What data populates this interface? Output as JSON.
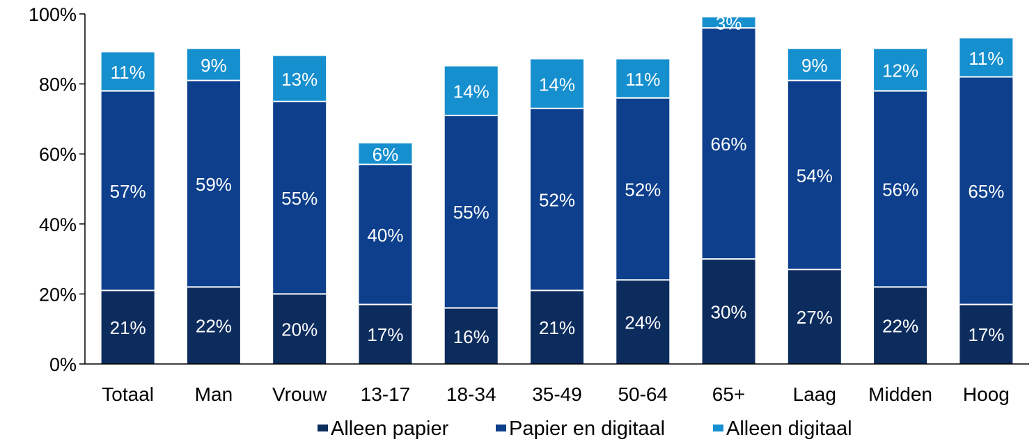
{
  "chart_data": {
    "type": "bar",
    "stacked": true,
    "categories": [
      "Totaal",
      "Man",
      "Vrouw",
      "13-17",
      "18-34",
      "35-49",
      "50-64",
      "65+",
      "Laag",
      "Midden",
      "Hoog"
    ],
    "series": [
      {
        "name": "Alleen papier",
        "color": "#0d2c5e",
        "values": [
          21,
          22,
          20,
          17,
          16,
          21,
          24,
          30,
          27,
          22,
          17
        ]
      },
      {
        "name": "Papier en digitaal",
        "color": "#0d3f8c",
        "values": [
          57,
          59,
          55,
          40,
          55,
          52,
          52,
          66,
          54,
          56,
          65
        ]
      },
      {
        "name": "Alleen digitaal",
        "color": "#168fcf",
        "values": [
          11,
          9,
          13,
          6,
          14,
          14,
          11,
          3,
          9,
          12,
          11
        ]
      }
    ],
    "data_labels": [
      [
        "21%",
        "22%",
        "20%",
        "17%",
        "16%",
        "21%",
        "24%",
        "30%",
        "27%",
        "22%",
        "17%"
      ],
      [
        "57%",
        "59%",
        "55%",
        "40%",
        "55%",
        "52%",
        "52%",
        "66%",
        "54%",
        "56%",
        "65%"
      ],
      [
        "11%",
        "9%",
        "13%",
        "6%",
        "14%",
        "14%",
        "11%",
        "3%",
        "9%",
        "12%",
        "11%"
      ]
    ],
    "yticks": [
      "0%",
      "20%",
      "40%",
      "60%",
      "80%",
      "100%"
    ],
    "ylim": [
      0,
      100
    ],
    "grid": false,
    "legend_position": "bottom"
  }
}
